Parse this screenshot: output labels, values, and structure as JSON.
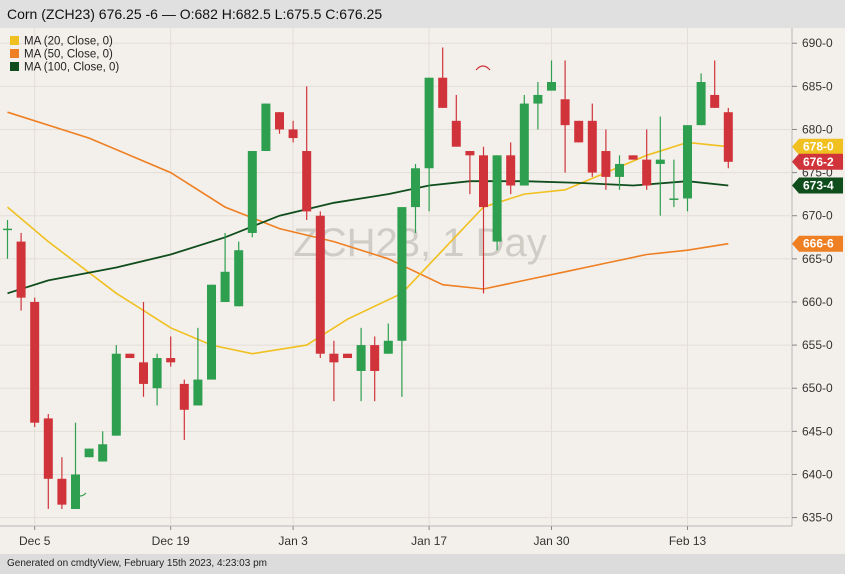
{
  "header": {
    "title": "Corn (ZCH23) 676.25 -6 — O:682 H:682.5 L:675.5 C:676.25"
  },
  "footer": {
    "text": "Generated on cmdtyView, February 15th 2023, 4:23:03 pm"
  },
  "watermark": "ZCH23, 1 Day",
  "colors": {
    "up": "#2e9e4f",
    "down": "#d0333a",
    "ma20": "#f0c020",
    "ma50": "#ee7f22",
    "ma100": "#0f4d1c",
    "plot_bg": "#f3f0eb"
  },
  "chart_data": {
    "type": "candlestick",
    "title": "Corn (ZCH23)",
    "x_tick_labels": [
      "Dec 5",
      "Dec 19",
      "Jan 3",
      "Jan 17",
      "Jan 30",
      "Feb 13"
    ],
    "x_tick_index": [
      2,
      12,
      21,
      31,
      40,
      50
    ],
    "y_ticks": [
      "635-0",
      "640-0",
      "645-0",
      "650-0",
      "655-0",
      "660-0",
      "665-0",
      "670-0",
      "675-0",
      "680-0",
      "685-0",
      "690-0"
    ],
    "y_tick_values": [
      635,
      640,
      645,
      650,
      655,
      660,
      665,
      670,
      675,
      680,
      685,
      690
    ],
    "ylim": [
      633,
      692
    ],
    "legend": [
      {
        "label": "MA (20, Close, 0)",
        "color": "#f0c020"
      },
      {
        "label": "MA (50, Close, 0)",
        "color": "#ee7f22"
      },
      {
        "label": "MA (100, Close, 0)",
        "color": "#0f4d1c"
      }
    ],
    "price_labels": [
      {
        "text": "678-0",
        "value": 678,
        "color": "#f0c020"
      },
      {
        "text": "676-2",
        "value": 676.25,
        "color": "#d0333a"
      },
      {
        "text": "673-4",
        "value": 673.5,
        "color": "#0f4d1c"
      },
      {
        "text": "666-6",
        "value": 666.75,
        "color": "#ee7f22"
      }
    ],
    "ohlc": [
      [
        668.5,
        669.5,
        665,
        668.5
      ],
      [
        667,
        668,
        659,
        660.5
      ],
      [
        660,
        660.5,
        645.5,
        646
      ],
      [
        646.5,
        647,
        636,
        639.5
      ],
      [
        639.5,
        642,
        636,
        636.5
      ],
      [
        636,
        646,
        636,
        640
      ],
      [
        642,
        643,
        642,
        643
      ],
      [
        641.5,
        645,
        641.5,
        643.5
      ],
      [
        644.5,
        655,
        644.5,
        654
      ],
      [
        654,
        654,
        653.5,
        653.5
      ],
      [
        653,
        660,
        649,
        650.5
      ],
      [
        650,
        654,
        648,
        653.5
      ],
      [
        653.5,
        656,
        652.5,
        653
      ],
      [
        650.5,
        651,
        644,
        647.5
      ],
      [
        648,
        657,
        648,
        651
      ],
      [
        651,
        662,
        651,
        662
      ],
      [
        660,
        668,
        660,
        663.5
      ],
      [
        659.5,
        667,
        659.5,
        666
      ],
      [
        668,
        677.5,
        667.5,
        677.5
      ],
      [
        677.5,
        683,
        677.5,
        683
      ],
      [
        682,
        682,
        679.5,
        680
      ],
      [
        680,
        681,
        678.5,
        679
      ],
      [
        677.5,
        685,
        669.5,
        670.5
      ],
      [
        670,
        670.5,
        653.5,
        654
      ],
      [
        654,
        655.5,
        648.5,
        653
      ],
      [
        654,
        654,
        653.5,
        653.5
      ],
      [
        652,
        657,
        648.5,
        655
      ],
      [
        655,
        656,
        648.5,
        652
      ],
      [
        654,
        657.5,
        654,
        655.5
      ],
      [
        655.5,
        670.5,
        649,
        671
      ],
      [
        671,
        676,
        668,
        675.5
      ],
      [
        675.5,
        686,
        670.5,
        686
      ],
      [
        686,
        689.5,
        682.5,
        682.5
      ],
      [
        681,
        684,
        678,
        678
      ],
      [
        677.5,
        677.5,
        672.5,
        677
      ],
      [
        677,
        678,
        661,
        671
      ],
      [
        667,
        677,
        666,
        677
      ],
      [
        677,
        678.5,
        672.5,
        673.5
      ],
      [
        673.5,
        684,
        673.5,
        683
      ],
      [
        683,
        685.5,
        680,
        684
      ],
      [
        684.5,
        688,
        684.5,
        685.5
      ],
      [
        683.5,
        688,
        675,
        680.5
      ],
      [
        681,
        681,
        678.5,
        678.5
      ],
      [
        681,
        683,
        674.5,
        675
      ],
      [
        677.5,
        680,
        673,
        674.5
      ],
      [
        674.5,
        677,
        673,
        676
      ],
      [
        677,
        677,
        676.5,
        676.5
      ],
      [
        676.5,
        680,
        673,
        673.5
      ],
      [
        676,
        681.5,
        670,
        676.5
      ],
      [
        672,
        676.5,
        671,
        672
      ],
      [
        672,
        680,
        670.5,
        680.5
      ],
      [
        680.5,
        686.5,
        680.5,
        685.5
      ],
      [
        684,
        688,
        682.5,
        682.5
      ],
      [
        682,
        682.5,
        675.5,
        676.25
      ]
    ],
    "ma20": [
      [
        0,
        671
      ],
      [
        3,
        667
      ],
      [
        8,
        661
      ],
      [
        12,
        657
      ],
      [
        15,
        655
      ],
      [
        18,
        654
      ],
      [
        22,
        655
      ],
      [
        25,
        658
      ],
      [
        29,
        661
      ],
      [
        32,
        666
      ],
      [
        35,
        671
      ],
      [
        38,
        672.5
      ],
      [
        41,
        673
      ],
      [
        44,
        675
      ],
      [
        47,
        677
      ],
      [
        50,
        678.5
      ],
      [
        53,
        678
      ]
    ],
    "ma50": [
      [
        0,
        682
      ],
      [
        6,
        679
      ],
      [
        12,
        675
      ],
      [
        16,
        671
      ],
      [
        20,
        668.5
      ],
      [
        24,
        667
      ],
      [
        28,
        665
      ],
      [
        32,
        662
      ],
      [
        35,
        661.5
      ],
      [
        38,
        662.5
      ],
      [
        41,
        663.5
      ],
      [
        44,
        664.5
      ],
      [
        47,
        665.5
      ],
      [
        50,
        666
      ],
      [
        53,
        666.75
      ]
    ],
    "ma100": [
      [
        0,
        661
      ],
      [
        3,
        662.5
      ],
      [
        8,
        664
      ],
      [
        12,
        665.5
      ],
      [
        16,
        667.5
      ],
      [
        20,
        670
      ],
      [
        24,
        671.5
      ],
      [
        28,
        672.5
      ],
      [
        31,
        673.5
      ],
      [
        34,
        674
      ],
      [
        38,
        674
      ],
      [
        42,
        673.8
      ],
      [
        46,
        673.5
      ],
      [
        50,
        674
      ],
      [
        53,
        673.5
      ]
    ]
  }
}
